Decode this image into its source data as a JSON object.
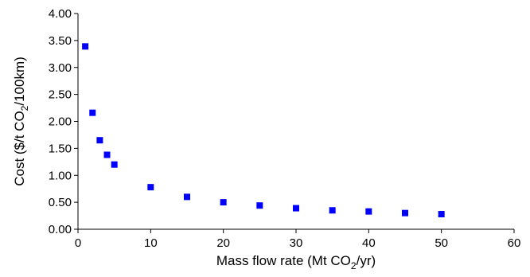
{
  "chart_data": {
    "type": "scatter",
    "title": "",
    "xlabel": {
      "main": "Mass flow rate (Mt CO",
      "sub": "2",
      "tail": "/yr)"
    },
    "ylabel": {
      "main": "Cost ($/t CO",
      "sub": "2",
      "tail": "/100km)"
    },
    "xlim": [
      0,
      60
    ],
    "ylim": [
      0,
      4
    ],
    "x_ticks": [
      "0",
      "10",
      "20",
      "30",
      "40",
      "50",
      "60"
    ],
    "y_ticks": [
      "0.00",
      "0.50",
      "1.00",
      "1.50",
      "2.00",
      "2.50",
      "3.00",
      "3.50",
      "4.00"
    ],
    "grid": false,
    "legend": "none",
    "marker": "square",
    "marker_color": "#0000ff",
    "series": [
      {
        "x": [
          1,
          2,
          3,
          4,
          5,
          10,
          15,
          20,
          25,
          30,
          35,
          40,
          45,
          50
        ],
        "y": [
          3.39,
          2.16,
          1.65,
          1.38,
          1.2,
          0.78,
          0.6,
          0.5,
          0.44,
          0.39,
          0.35,
          0.33,
          0.3,
          0.28
        ]
      }
    ]
  }
}
